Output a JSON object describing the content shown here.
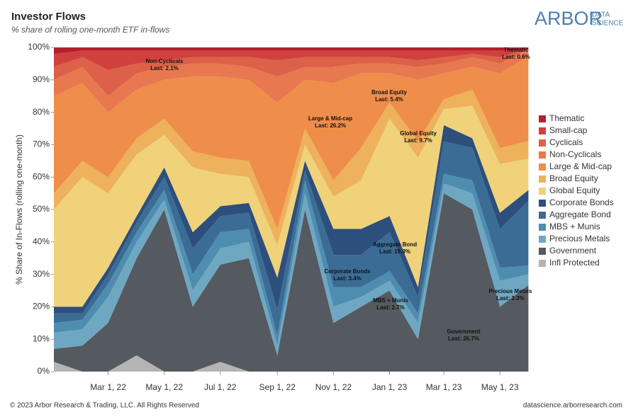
{
  "chart_data": {
    "type": "stacked-area-100",
    "title": "Investor Flows",
    "subtitle": "% share of rolling one-month ETF in-flows",
    "y_label": "% Share of In-Flows (rolling one-month)",
    "logo": {
      "main": "ARBOR",
      "top": "DATA",
      "bottom": "SCIENCE"
    },
    "footer_left": "© 2023 Arbor Research & Trading, LLC. All Rights Reserved",
    "footer_right": "datascience.arborresearch.com",
    "x": [
      "2022-01-01",
      "2022-02-01",
      "2022-03-01",
      "2022-04-01",
      "2022-05-01",
      "2022-06-01",
      "2022-07-01",
      "2022-08-01",
      "2022-09-01",
      "2022-10-01",
      "2022-11-01",
      "2022-12-01",
      "2023-01-01",
      "2023-02-01",
      "2023-03-01",
      "2023-04-01",
      "2023-05-01",
      "2023-06-01"
    ],
    "xlim": [
      "2022-01-01",
      "2023-06-03"
    ],
    "xticks": [
      {
        "value": "2022-03-01",
        "label": "Mar 1, 22"
      },
      {
        "value": "2022-05-01",
        "label": "May 1, 22"
      },
      {
        "value": "2022-07-01",
        "label": "Jul 1, 22"
      },
      {
        "value": "2022-09-01",
        "label": "Sep 1, 22"
      },
      {
        "value": "2022-11-01",
        "label": "Nov 1, 22"
      },
      {
        "value": "2023-01-01",
        "label": "Jan 1, 23"
      },
      {
        "value": "2023-03-01",
        "label": "Mar 1, 23"
      },
      {
        "value": "2023-05-01",
        "label": "May 1, 23"
      }
    ],
    "ylim": [
      0,
      100
    ],
    "yticks": [
      {
        "value": 0,
        "label": "0%"
      },
      {
        "value": 10,
        "label": "10%"
      },
      {
        "value": 20,
        "label": "20%"
      },
      {
        "value": 30,
        "label": "30%"
      },
      {
        "value": 40,
        "label": "40%"
      },
      {
        "value": 50,
        "label": "50%"
      },
      {
        "value": 60,
        "label": "60%"
      },
      {
        "value": 70,
        "label": "70%"
      },
      {
        "value": 80,
        "label": "80%"
      },
      {
        "value": 90,
        "label": "90%"
      },
      {
        "value": 100,
        "label": "100%"
      }
    ],
    "series": [
      {
        "name": "Thematic",
        "color": "#b5202e",
        "values": [
          2,
          1,
          1,
          1,
          1,
          1,
          1,
          1,
          1,
          1,
          1,
          1,
          1,
          1,
          1,
          1,
          1,
          0.6
        ]
      },
      {
        "name": "Small-cap",
        "color": "#d0413d",
        "values": [
          4,
          2,
          6,
          4,
          3,
          2,
          2,
          2,
          3,
          2,
          2,
          2,
          2,
          3,
          2,
          1,
          2,
          0
        ]
      },
      {
        "name": "Cyclicals",
        "color": "#dc6148",
        "values": [
          4,
          3,
          8,
          3,
          2,
          2,
          2,
          3,
          5,
          3,
          3,
          2,
          2,
          2,
          2,
          1,
          2,
          0
        ]
      },
      {
        "name": "Non-Cyclicals",
        "color": "#e8784f",
        "values": [
          5,
          5,
          5,
          5,
          4,
          4,
          4,
          4,
          8,
          4,
          5,
          3,
          3,
          4,
          3,
          3,
          3,
          2.1
        ]
      },
      {
        "name": "Large & Mid-cap",
        "color": "#ef8d4a",
        "values": [
          30,
          24,
          20,
          15,
          12,
          23,
          25,
          25,
          39,
          15,
          30,
          23,
          9,
          19,
          8,
          7,
          23,
          26.2
        ]
      },
      {
        "name": "Broad Equity",
        "color": "#eeb15c",
        "values": [
          5,
          5,
          5,
          5,
          5,
          5,
          5,
          5,
          5,
          5,
          5,
          10,
          5,
          5,
          3,
          5,
          5,
          5.4
        ]
      },
      {
        "name": "Global Equity",
        "color": "#efd27a",
        "values": [
          30,
          40,
          23,
          19,
          10,
          20,
          10,
          8,
          10,
          5,
          10,
          15,
          30,
          40,
          5,
          10,
          15,
          9.7
        ]
      },
      {
        "name": "Corporate Bonds",
        "color": "#2c4f7c",
        "values": [
          2,
          2,
          2,
          2,
          3,
          5,
          3,
          3,
          10,
          3,
          8,
          8,
          5,
          3,
          5,
          3,
          5,
          3.4
        ]
      },
      {
        "name": "Aggregate Bond",
        "color": "#3b6c96",
        "values": [
          3,
          2,
          3,
          3,
          4,
          8,
          5,
          5,
          8,
          3,
          10,
          10,
          12,
          5,
          10,
          10,
          12,
          19.9
        ]
      },
      {
        "name": "MBS + Munis",
        "color": "#4f8db0",
        "values": [
          3,
          3,
          4,
          3,
          3,
          5,
          5,
          4,
          3,
          4,
          6,
          3,
          3,
          3,
          3,
          4,
          4,
          2.7
        ]
      },
      {
        "name": "Precious Metals",
        "color": "#6ea7c2",
        "values": [
          5,
          5,
          8,
          5,
          3,
          5,
          5,
          5,
          3,
          5,
          5,
          3,
          3,
          5,
          3,
          5,
          8,
          3.3
        ]
      },
      {
        "name": "Government",
        "color": "#555960",
        "values": [
          4,
          8,
          15,
          30,
          50,
          20,
          30,
          35,
          5,
          50,
          15,
          20,
          25,
          10,
          55,
          50,
          20,
          26.7
        ]
      },
      {
        "name": "Infl Protected",
        "color": "#b4b4b4",
        "values": [
          3,
          0,
          0,
          5,
          0,
          0,
          3,
          0,
          0,
          0,
          0,
          0,
          0,
          0,
          0,
          0,
          0,
          0
        ]
      }
    ],
    "annotations": [
      {
        "label": "Non-Cyclicals",
        "text": "Last: 2.1%"
      },
      {
        "label": "Large & Mid-cap",
        "text": "Last: 26.2%"
      },
      {
        "label": "Broad Equity",
        "text": "Last: 5.4%"
      },
      {
        "label": "Global Equity",
        "text": "Last: 9.7%"
      },
      {
        "label": "Aggregate Bond",
        "text": "Last: 19.9%"
      },
      {
        "label": "Corporate Bonds",
        "text": "Last: 3.4%"
      },
      {
        "label": "MBS + Munis",
        "text": "Last: 2.7%"
      },
      {
        "label": "Government",
        "text": "Last: 26.7%"
      },
      {
        "label": "Precious Metals",
        "text": "Last: 3.3%"
      },
      {
        "label": "Thematic",
        "text": "Last: 0.6%"
      }
    ]
  }
}
